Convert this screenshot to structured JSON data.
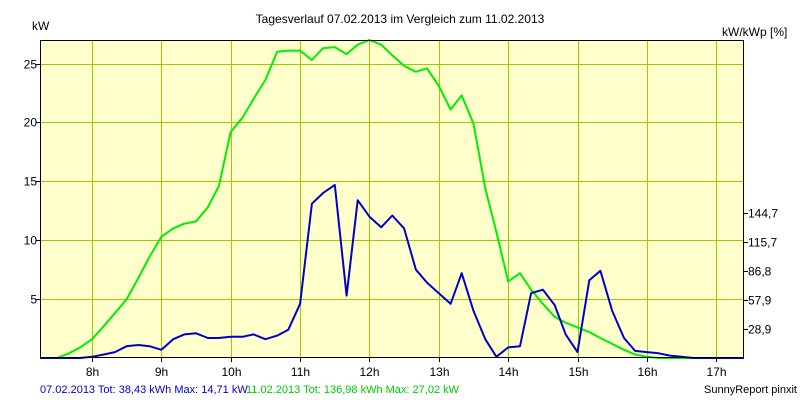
{
  "chart_data": {
    "type": "line",
    "title": "Tagesverlauf 07.02.2013 im Vergleich zum 11.02.2013",
    "ylabel_left": "kW",
    "ylabel_right": "kW/kWp [%]",
    "xlim": [
      7.25,
      17.4
    ],
    "ylim": [
      0,
      27
    ],
    "x_ticks": [
      8,
      9,
      10,
      11,
      12,
      13,
      14,
      15,
      16,
      17
    ],
    "x_tick_labels": [
      "8h",
      "9h",
      "10h",
      "11h",
      "12h",
      "13h",
      "14h",
      "15h",
      "16h",
      "17h"
    ],
    "y_ticks_left": [
      5,
      10,
      15,
      20,
      25
    ],
    "y_tick_labels_left": [
      "5",
      "10",
      "15",
      "20",
      "25"
    ],
    "y_ticks_right_values": [
      2.46,
      4.92,
      7.38,
      9.84,
      12.3
    ],
    "y_tick_labels_right": [
      "28,9",
      "57,9",
      "86,8",
      "115,7",
      "144,7"
    ],
    "grid": true,
    "plot_background": "#ffffcc",
    "grid_color": "#99cc00",
    "series": [
      {
        "name": "07.02.2013",
        "color": "#0000cc",
        "x": [
          7.25,
          7.83,
          8.0,
          8.17,
          8.33,
          8.5,
          8.67,
          8.83,
          9.0,
          9.17,
          9.33,
          9.5,
          9.67,
          9.83,
          10.0,
          10.17,
          10.33,
          10.5,
          10.67,
          10.83,
          11.0,
          11.17,
          11.33,
          11.5,
          11.67,
          11.83,
          12.0,
          12.17,
          12.33,
          12.5,
          12.67,
          12.83,
          13.0,
          13.17,
          13.33,
          13.5,
          13.67,
          13.83,
          14.0,
          14.17,
          14.33,
          14.5,
          14.67,
          14.83,
          15.0,
          15.17,
          15.33,
          15.5,
          15.67,
          15.83,
          16.0,
          16.17,
          16.33,
          16.5,
          16.67,
          16.83,
          17.0,
          17.17,
          17.4
        ],
        "values": [
          0,
          0,
          0.1,
          0.3,
          0.5,
          1.0,
          1.1,
          1.0,
          0.7,
          1.6,
          2.0,
          2.1,
          1.7,
          1.7,
          1.8,
          1.8,
          2.0,
          1.6,
          1.9,
          2.4,
          4.6,
          13.1,
          14.0,
          14.7,
          5.3,
          13.4,
          12.0,
          11.1,
          12.1,
          11.0,
          7.5,
          6.4,
          5.5,
          4.6,
          7.2,
          4.0,
          1.6,
          0.1,
          0.9,
          1.0,
          5.5,
          5.8,
          4.5,
          2.0,
          0.5,
          6.6,
          7.4,
          4.0,
          1.7,
          0.6,
          0.5,
          0.4,
          0.2,
          0.1,
          0,
          0,
          0,
          0,
          0
        ]
      },
      {
        "name": "11.02.2013",
        "color": "#00ee00",
        "x": [
          7.25,
          7.5,
          7.67,
          7.83,
          8.0,
          8.17,
          8.33,
          8.5,
          8.67,
          8.83,
          9.0,
          9.17,
          9.33,
          9.5,
          9.67,
          9.83,
          10.0,
          10.17,
          10.33,
          10.5,
          10.67,
          10.83,
          11.0,
          11.17,
          11.33,
          11.5,
          11.67,
          11.83,
          12.0,
          12.17,
          12.33,
          12.5,
          12.67,
          12.83,
          13.0,
          13.17,
          13.33,
          13.5,
          13.67,
          13.83,
          14.0,
          14.17,
          14.33,
          14.5,
          14.67,
          14.83,
          15.0,
          15.17,
          15.33,
          15.5,
          15.67,
          15.83,
          16.0,
          16.17,
          16.33,
          16.5,
          16.67,
          16.83,
          17.0,
          17.17,
          17.4
        ],
        "values": [
          0,
          0,
          0.4,
          0.9,
          1.6,
          2.7,
          3.8,
          5.0,
          6.8,
          8.6,
          10.3,
          11.0,
          11.4,
          11.6,
          12.8,
          14.6,
          19.2,
          20.4,
          22.0,
          23.6,
          26.0,
          26.1,
          26.1,
          25.3,
          26.3,
          26.4,
          25.8,
          26.6,
          27.0,
          26.6,
          25.7,
          24.8,
          24.3,
          24.6,
          23.1,
          21.1,
          22.3,
          19.9,
          14.4,
          10.7,
          6.5,
          7.2,
          5.8,
          4.6,
          3.5,
          3.0,
          2.6,
          2.2,
          1.7,
          1.2,
          0.7,
          0.3,
          0.1,
          0,
          0,
          0,
          0,
          0,
          0,
          0,
          0
        ]
      }
    ]
  },
  "footer": {
    "series1_text": "07.02.2013 Tot: 38,43 kWh Max: 14,71 kW",
    "series2_text": "11.02.2013 Tot: 136,98 kWh Max: 27,02 kW",
    "brand": "SunnyReport pinxit"
  }
}
